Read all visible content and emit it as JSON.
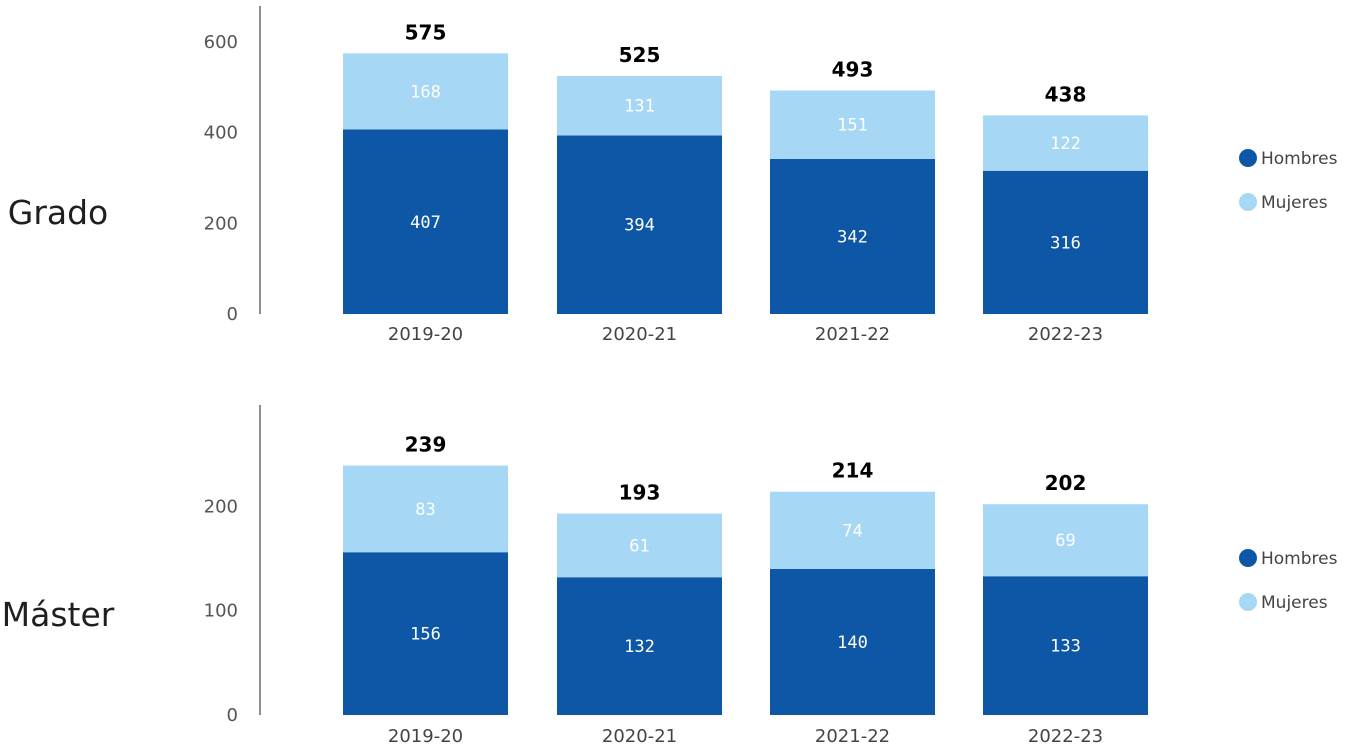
{
  "colors": {
    "Hombres": "#0d57a6",
    "Mujeres": "#a6d8f5",
    "axis": "#444444"
  },
  "legend": [
    "Hombres",
    "Mujeres"
  ],
  "chart_data": [
    {
      "type": "bar",
      "stacked": true,
      "row_label": "Grado",
      "categories": [
        "2019-20",
        "2020-21",
        "2021-22",
        "2022-23"
      ],
      "series": [
        {
          "name": "Hombres",
          "values": [
            407,
            394,
            342,
            316
          ]
        },
        {
          "name": "Mujeres",
          "values": [
            168,
            131,
            151,
            122
          ]
        }
      ],
      "totals": [
        575,
        525,
        493,
        438
      ],
      "yticks": [
        0,
        200,
        400,
        600
      ],
      "ylim": [
        0,
        600
      ],
      "grid": false,
      "legend_position": "right"
    },
    {
      "type": "bar",
      "stacked": true,
      "row_label": "Máster",
      "categories": [
        "2019-20",
        "2020-21",
        "2021-22",
        "2022-23"
      ],
      "series": [
        {
          "name": "Hombres",
          "values": [
            156,
            132,
            140,
            133
          ]
        },
        {
          "name": "Mujeres",
          "values": [
            83,
            61,
            74,
            69
          ]
        }
      ],
      "totals": [
        239,
        193,
        214,
        202
      ],
      "yticks": [
        0,
        100,
        200
      ],
      "ylim": [
        0,
        200
      ],
      "grid": false,
      "legend_position": "right"
    }
  ]
}
